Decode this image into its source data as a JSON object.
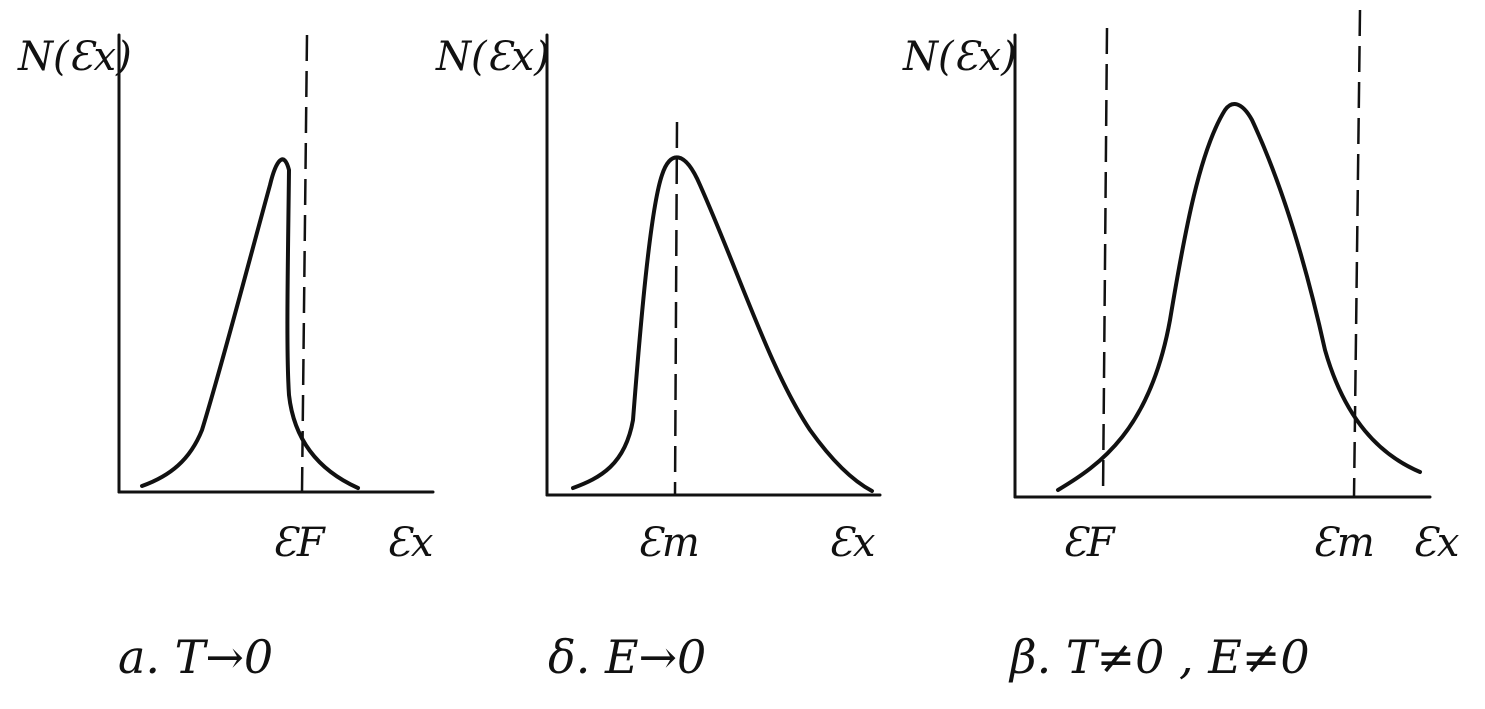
{
  "panels": [
    {
      "y_label": "N(Ɛx)",
      "x_label": "Ɛx",
      "markers": [
        "ƐF"
      ],
      "caption": "a. T→0"
    },
    {
      "y_label": "N(Ɛx)",
      "x_label": "Ɛx",
      "markers": [
        "Ɛm"
      ],
      "caption": "δ. E→0"
    },
    {
      "y_label": "N(Ɛx)",
      "x_label": "Ɛx",
      "markers": [
        "ƐF",
        "Ɛm"
      ],
      "caption": "β. T≠0 , E≠0"
    }
  ]
}
